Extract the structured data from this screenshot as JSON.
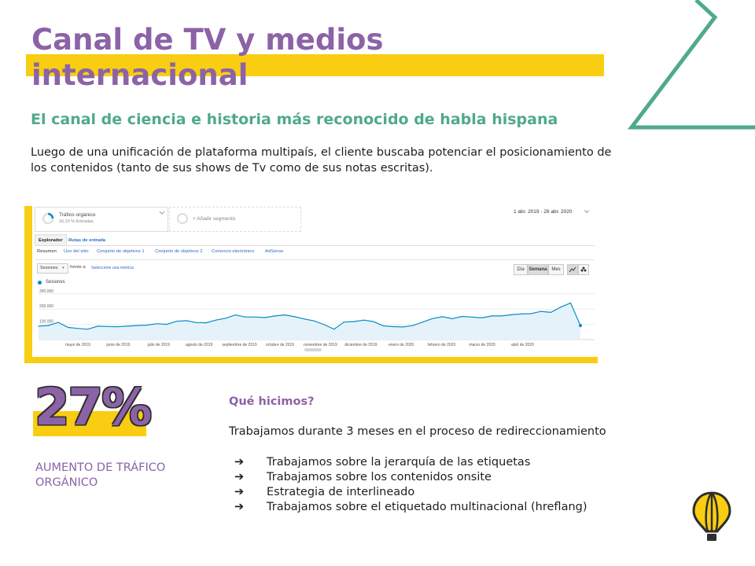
{
  "page": {
    "title": "Canal de TV y medios internacional",
    "subtitle": "El canal de ciencia e historia más reconocido de habla hispana",
    "intro": "Luego de una unificación de plataforma multipaís, el cliente buscaba potenciar el posicionamiento de los contenidos (tanto de sus shows de Tv como de sus notas escritas)."
  },
  "analytics": {
    "segment_name": "Tráfico orgánico",
    "segment_sub": "16,10 % Entradas",
    "add_segment": "+ Añadir segmento",
    "date_range": "1 abr. 2019 - 28 abr. 2020",
    "tabs": [
      "Explorador",
      "Rutas de entrada"
    ],
    "subtabs": [
      "Resumen",
      "Uso del sitio",
      "Conjunto de objetivos 1",
      "Conjunto de objetivos 2",
      "Comercio electrónico",
      "AdSense"
    ],
    "metric_select": "Sesiones",
    "vs_label": "frente a",
    "select_metric": "Seleccione una métrica",
    "granularity": [
      "Día",
      "Semana",
      "Mes"
    ],
    "granularity_selected": "Semana",
    "legend": "Sesiones",
    "series_color": "#058dc7",
    "chart_data": {
      "type": "area",
      "ylim": [
        0,
        340000
      ],
      "yticks": [
        "300.000",
        "200.000",
        "100.000"
      ],
      "ytick_values": [
        300000,
        200000,
        100000
      ],
      "xticks": [
        "mayo de 2019",
        "junio de 2019",
        "julio de 2019",
        "agosto de 2019",
        "septiembre de 2019",
        "octubre de 2019",
        "noviembre de 2019",
        "diciembre de 2019",
        "enero de 2020",
        "febrero de 2020",
        "marzo de 2020",
        "abril de 2020"
      ],
      "series": [
        {
          "values": [
            88000,
            92000,
            113000,
            80000,
            73000,
            68000,
            88000,
            86000,
            84000,
            88000,
            92000,
            95000,
            104000,
            100000,
            120000,
            124000,
            112000,
            110000,
            128000,
            140000,
            162000,
            148000,
            148000,
            145000,
            155000,
            162000,
            150000,
            135000,
            122000,
            98000,
            68000,
            115000,
            118000,
            128000,
            118000,
            90000,
            85000,
            83000,
            92000,
            115000,
            138000,
            150000,
            137000,
            152000,
            148000,
            142000,
            155000,
            155000,
            163000,
            168000,
            170000,
            185000,
            178000,
            213000,
            240000,
            92000
          ]
        }
      ]
    }
  },
  "metric": {
    "value": "27%",
    "label": "AUMENTO DE TRÁFICO ORGÁNICO"
  },
  "what": {
    "title": "Qué hicimos?",
    "body": "Trabajamos durante 3 meses en el proceso de redireccionamiento",
    "bullet_symbol": "➔",
    "bullets": [
      "Trabajamos sobre la jerarquía de las etiquetas",
      "Trabajamos sobre los contenidos onsite",
      "Estrategia de interlineado",
      "Trabajamos sobre el etiquetado multinacional (hreflang)"
    ]
  },
  "colors": {
    "accent_purple": "#8b63a6",
    "accent_yellow": "#f9cd12",
    "accent_green": "#4faa88"
  },
  "icons": {
    "corner_decoration": "green-chevron-outline",
    "logo": "hot-air-balloon-icon"
  }
}
